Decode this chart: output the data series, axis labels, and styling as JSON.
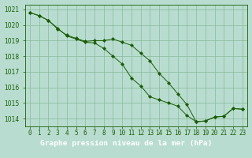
{
  "title": "Graphe pression niveau de la mer (hPa)",
  "xlabel_ticks": [
    "0",
    "1",
    "2",
    "3",
    "4",
    "5",
    "6",
    "7",
    "8",
    "9",
    "10",
    "11",
    "12",
    "13",
    "14",
    "15",
    "16",
    "17",
    "18",
    "19",
    "20",
    "21",
    "22",
    "23"
  ],
  "x": [
    0,
    1,
    2,
    3,
    4,
    5,
    6,
    7,
    8,
    9,
    10,
    11,
    12,
    13,
    14,
    15,
    16,
    17,
    18,
    19,
    20,
    21,
    22,
    23
  ],
  "series1": [
    1020.8,
    1020.6,
    1020.3,
    1019.8,
    1019.3,
    1019.1,
    1018.9,
    1018.85,
    1018.5,
    1018.0,
    1017.5,
    1016.6,
    1016.1,
    1015.4,
    1015.2,
    1015.0,
    1014.8,
    1014.2,
    1013.8,
    1013.85,
    1014.1,
    1014.15,
    1014.65,
    1014.6
  ],
  "series2": [
    1020.8,
    1020.6,
    1020.3,
    1019.75,
    1019.35,
    1019.15,
    1018.95,
    1019.0,
    1019.0,
    1019.1,
    1018.9,
    1018.7,
    1018.2,
    1017.7,
    1016.9,
    1016.3,
    1015.6,
    1014.9,
    1013.8,
    1013.85,
    1014.1,
    1014.15,
    1014.65,
    1014.6
  ],
  "ylim": [
    1013.5,
    1021.3
  ],
  "yticks": [
    1014,
    1015,
    1016,
    1017,
    1018,
    1019,
    1020,
    1021
  ],
  "line_color": "#1a5c00",
  "bg_color": "#b8ddd0",
  "grid_color": "#88b898",
  "title_bg": "#2d6b2d",
  "title_fg": "#ffffff",
  "title_fontsize": 6.8,
  "tick_fontsize": 5.5
}
